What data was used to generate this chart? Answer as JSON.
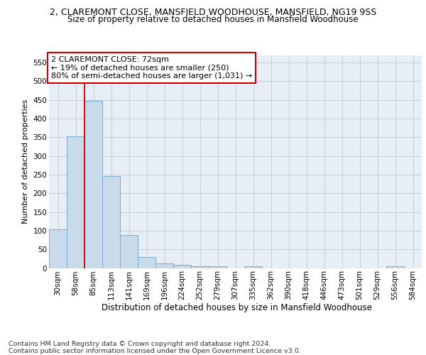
{
  "title_line1": "2, CLAREMONT CLOSE, MANSFIELD WOODHOUSE, MANSFIELD, NG19 9SS",
  "title_line2": "Size of property relative to detached houses in Mansfield Woodhouse",
  "xlabel": "Distribution of detached houses by size in Mansfield Woodhouse",
  "ylabel": "Number of detached properties",
  "footer_line1": "Contains HM Land Registry data © Crown copyright and database right 2024.",
  "footer_line2": "Contains public sector information licensed under the Open Government Licence v3.0.",
  "categories": [
    "30sqm",
    "58sqm",
    "85sqm",
    "113sqm",
    "141sqm",
    "169sqm",
    "196sqm",
    "224sqm",
    "252sqm",
    "279sqm",
    "307sqm",
    "335sqm",
    "362sqm",
    "390sqm",
    "418sqm",
    "446sqm",
    "473sqm",
    "501sqm",
    "529sqm",
    "556sqm",
    "584sqm"
  ],
  "values": [
    103,
    352,
    448,
    246,
    88,
    30,
    13,
    9,
    5,
    5,
    0,
    5,
    0,
    0,
    0,
    0,
    0,
    0,
    0,
    5,
    0
  ],
  "bar_color": "#c9daea",
  "bar_edge_color": "#7aadd4",
  "bar_linewidth": 0.7,
  "vline_x": 1.5,
  "vline_color": "#cc0000",
  "vline_linewidth": 1.3,
  "annotation_text": "2 CLAREMONT CLOSE: 72sqm\n← 19% of detached houses are smaller (250)\n80% of semi-detached houses are larger (1,031) →",
  "ylim": [
    0,
    570
  ],
  "yticks": [
    0,
    50,
    100,
    150,
    200,
    250,
    300,
    350,
    400,
    450,
    500,
    550
  ],
  "bg_color": "#e8eef6",
  "grid_color": "#c8d0dc",
  "title_fontsize": 9.0,
  "subtitle_fontsize": 8.5,
  "ylabel_fontsize": 8.0,
  "xlabel_fontsize": 8.5,
  "tick_fontsize": 7.5,
  "annotation_fontsize": 8.0,
  "footer_fontsize": 6.8
}
